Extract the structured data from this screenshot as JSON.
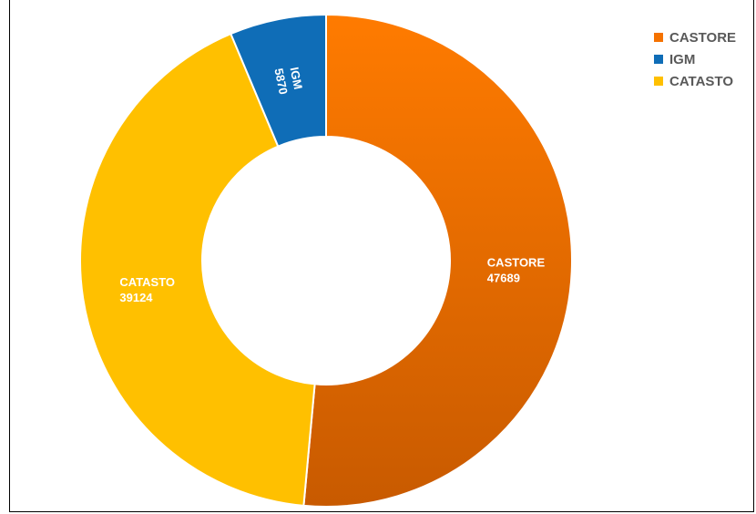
{
  "chart_data": {
    "type": "pie",
    "donut": true,
    "title": "",
    "slices": [
      {
        "label": "CASTORE",
        "value": 47689,
        "color": "#FF7700"
      },
      {
        "label": "CATASTO",
        "value": 39124,
        "color": "#FFC000"
      },
      {
        "label": "IGM",
        "value": 5870,
        "color": "#0F6DB7"
      }
    ],
    "legend": {
      "position": "top-right",
      "entries": [
        "CASTORE",
        "IGM",
        "CATASTO"
      ]
    }
  }
}
